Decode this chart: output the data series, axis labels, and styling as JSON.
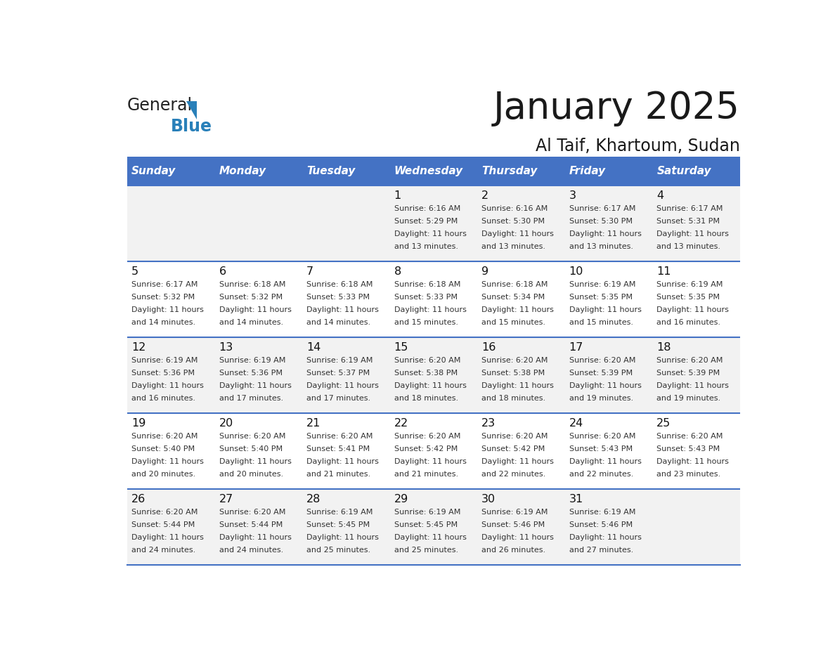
{
  "title": "January 2025",
  "subtitle": "Al Taif, Khartoum, Sudan",
  "days_of_week": [
    "Sunday",
    "Monday",
    "Tuesday",
    "Wednesday",
    "Thursday",
    "Friday",
    "Saturday"
  ],
  "header_bg": "#4472C4",
  "header_text": "#FFFFFF",
  "row_bg_odd": "#F2F2F2",
  "row_bg_even": "#FFFFFF",
  "divider_color": "#4472C4",
  "calendar_data": [
    [
      {
        "day": "",
        "sunrise": "",
        "sunset": "",
        "daylight_h": "",
        "daylight_m": ""
      },
      {
        "day": "",
        "sunrise": "",
        "sunset": "",
        "daylight_h": "",
        "daylight_m": ""
      },
      {
        "day": "",
        "sunrise": "",
        "sunset": "",
        "daylight_h": "",
        "daylight_m": ""
      },
      {
        "day": "1",
        "sunrise": "6:16 AM",
        "sunset": "5:29 PM",
        "daylight_h": "11",
        "daylight_m": "13"
      },
      {
        "day": "2",
        "sunrise": "6:16 AM",
        "sunset": "5:30 PM",
        "daylight_h": "11",
        "daylight_m": "13"
      },
      {
        "day": "3",
        "sunrise": "6:17 AM",
        "sunset": "5:30 PM",
        "daylight_h": "11",
        "daylight_m": "13"
      },
      {
        "day": "4",
        "sunrise": "6:17 AM",
        "sunset": "5:31 PM",
        "daylight_h": "11",
        "daylight_m": "13"
      }
    ],
    [
      {
        "day": "5",
        "sunrise": "6:17 AM",
        "sunset": "5:32 PM",
        "daylight_h": "11",
        "daylight_m": "14"
      },
      {
        "day": "6",
        "sunrise": "6:18 AM",
        "sunset": "5:32 PM",
        "daylight_h": "11",
        "daylight_m": "14"
      },
      {
        "day": "7",
        "sunrise": "6:18 AM",
        "sunset": "5:33 PM",
        "daylight_h": "11",
        "daylight_m": "14"
      },
      {
        "day": "8",
        "sunrise": "6:18 AM",
        "sunset": "5:33 PM",
        "daylight_h": "11",
        "daylight_m": "15"
      },
      {
        "day": "9",
        "sunrise": "6:18 AM",
        "sunset": "5:34 PM",
        "daylight_h": "11",
        "daylight_m": "15"
      },
      {
        "day": "10",
        "sunrise": "6:19 AM",
        "sunset": "5:35 PM",
        "daylight_h": "11",
        "daylight_m": "15"
      },
      {
        "day": "11",
        "sunrise": "6:19 AM",
        "sunset": "5:35 PM",
        "daylight_h": "11",
        "daylight_m": "16"
      }
    ],
    [
      {
        "day": "12",
        "sunrise": "6:19 AM",
        "sunset": "5:36 PM",
        "daylight_h": "11",
        "daylight_m": "16"
      },
      {
        "day": "13",
        "sunrise": "6:19 AM",
        "sunset": "5:36 PM",
        "daylight_h": "11",
        "daylight_m": "17"
      },
      {
        "day": "14",
        "sunrise": "6:19 AM",
        "sunset": "5:37 PM",
        "daylight_h": "11",
        "daylight_m": "17"
      },
      {
        "day": "15",
        "sunrise": "6:20 AM",
        "sunset": "5:38 PM",
        "daylight_h": "11",
        "daylight_m": "18"
      },
      {
        "day": "16",
        "sunrise": "6:20 AM",
        "sunset": "5:38 PM",
        "daylight_h": "11",
        "daylight_m": "18"
      },
      {
        "day": "17",
        "sunrise": "6:20 AM",
        "sunset": "5:39 PM",
        "daylight_h": "11",
        "daylight_m": "19"
      },
      {
        "day": "18",
        "sunrise": "6:20 AM",
        "sunset": "5:39 PM",
        "daylight_h": "11",
        "daylight_m": "19"
      }
    ],
    [
      {
        "day": "19",
        "sunrise": "6:20 AM",
        "sunset": "5:40 PM",
        "daylight_h": "11",
        "daylight_m": "20"
      },
      {
        "day": "20",
        "sunrise": "6:20 AM",
        "sunset": "5:40 PM",
        "daylight_h": "11",
        "daylight_m": "20"
      },
      {
        "day": "21",
        "sunrise": "6:20 AM",
        "sunset": "5:41 PM",
        "daylight_h": "11",
        "daylight_m": "21"
      },
      {
        "day": "22",
        "sunrise": "6:20 AM",
        "sunset": "5:42 PM",
        "daylight_h": "11",
        "daylight_m": "21"
      },
      {
        "day": "23",
        "sunrise": "6:20 AM",
        "sunset": "5:42 PM",
        "daylight_h": "11",
        "daylight_m": "22"
      },
      {
        "day": "24",
        "sunrise": "6:20 AM",
        "sunset": "5:43 PM",
        "daylight_h": "11",
        "daylight_m": "22"
      },
      {
        "day": "25",
        "sunrise": "6:20 AM",
        "sunset": "5:43 PM",
        "daylight_h": "11",
        "daylight_m": "23"
      }
    ],
    [
      {
        "day": "26",
        "sunrise": "6:20 AM",
        "sunset": "5:44 PM",
        "daylight_h": "11",
        "daylight_m": "24"
      },
      {
        "day": "27",
        "sunrise": "6:20 AM",
        "sunset": "5:44 PM",
        "daylight_h": "11",
        "daylight_m": "24"
      },
      {
        "day": "28",
        "sunrise": "6:19 AM",
        "sunset": "5:45 PM",
        "daylight_h": "11",
        "daylight_m": "25"
      },
      {
        "day": "29",
        "sunrise": "6:19 AM",
        "sunset": "5:45 PM",
        "daylight_h": "11",
        "daylight_m": "25"
      },
      {
        "day": "30",
        "sunrise": "6:19 AM",
        "sunset": "5:46 PM",
        "daylight_h": "11",
        "daylight_m": "26"
      },
      {
        "day": "31",
        "sunrise": "6:19 AM",
        "sunset": "5:46 PM",
        "daylight_h": "11",
        "daylight_m": "27"
      },
      {
        "day": "",
        "sunrise": "",
        "sunset": "",
        "daylight_h": "",
        "daylight_m": ""
      }
    ]
  ]
}
